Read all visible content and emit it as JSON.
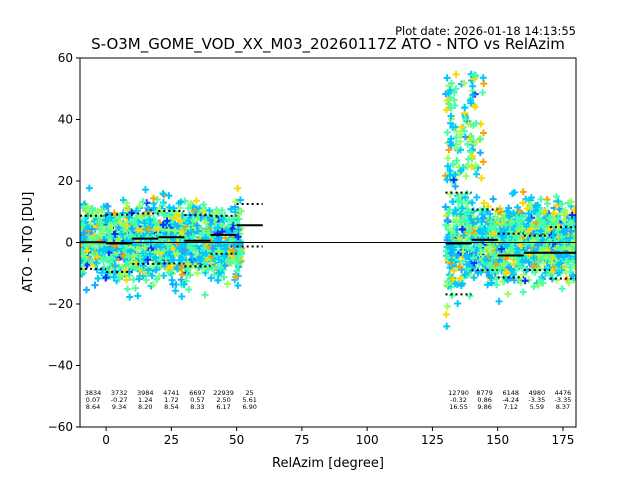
{
  "chart_data": {
    "type": "scatter",
    "title": "S-O3M_GOME_VOD_XX_M03_20260117Z ATO - NTO vs RelAzim",
    "plot_date": "Plot date: 2026-01-18 14:13:55",
    "xlabel": "RelAzim [degree]",
    "ylabel": "ATO - NTO [DU]",
    "xlim": [
      -10,
      180
    ],
    "ylim": [
      -60,
      60
    ],
    "xticks": [
      0,
      25,
      50,
      75,
      100,
      125,
      150,
      175
    ],
    "yticks": [
      -60,
      -40,
      -20,
      0,
      20,
      40,
      60
    ],
    "grid": false,
    "marker": "+",
    "point_colors": [
      "#00c8ff",
      "#48ffa8",
      "#98ff60",
      "#ffd800",
      "#ffa000",
      "#0030ff",
      "#18a8ff"
    ],
    "zero_line": 0,
    "point_clusters": [
      {
        "x_range": [
          -10,
          52
        ],
        "y_center": 0,
        "y_spread": 24
      },
      {
        "x_range": [
          130,
          180
        ],
        "y_center": 0,
        "y_spread": 24
      }
    ],
    "bins": [
      {
        "x_start": -10,
        "x_end": 0,
        "count": "3834",
        "mean": "0.07",
        "std": "8.64",
        "mean_val": 0.07,
        "std_val": 8.64
      },
      {
        "x_start": 0,
        "x_end": 10,
        "count": "3732",
        "mean": "-0.27",
        "std": "9.34",
        "mean_val": -0.27,
        "std_val": 9.34
      },
      {
        "x_start": 10,
        "x_end": 20,
        "count": "3984",
        "mean": "1.24",
        "std": "8.20",
        "mean_val": 1.24,
        "std_val": 8.2
      },
      {
        "x_start": 20,
        "x_end": 30,
        "count": "4741",
        "mean": "1.72",
        "std": "8.54",
        "mean_val": 1.72,
        "std_val": 8.54
      },
      {
        "x_start": 30,
        "x_end": 40,
        "count": "6697",
        "mean": "0.57",
        "std": "8.33",
        "mean_val": 0.57,
        "std_val": 8.33
      },
      {
        "x_start": 40,
        "x_end": 50,
        "count": "22939",
        "mean": "2.50",
        "std": "6.17",
        "mean_val": 2.5,
        "std_val": 6.17
      },
      {
        "x_start": 50,
        "x_end": 60,
        "count": "25",
        "mean": "5.61",
        "std": "6.90",
        "mean_val": 5.61,
        "std_val": 6.9
      },
      {
        "x_start": 130,
        "x_end": 140,
        "count": "12790",
        "mean": "-0.32",
        "std": "16.55",
        "mean_val": -0.32,
        "std_val": 16.55
      },
      {
        "x_start": 140,
        "x_end": 150,
        "count": "8779",
        "mean": "0.86",
        "std": "9.86",
        "mean_val": 0.86,
        "std_val": 9.86
      },
      {
        "x_start": 150,
        "x_end": 160,
        "count": "6148",
        "mean": "-4.24",
        "std": "7.12",
        "mean_val": -4.24,
        "std_val": 7.12
      },
      {
        "x_start": 160,
        "x_end": 170,
        "count": "4980",
        "mean": "-3.35",
        "std": "5.59",
        "mean_val": -3.35,
        "std_val": 5.59
      },
      {
        "x_start": 170,
        "x_end": 180,
        "count": "4476",
        "mean": "-3.35",
        "std": "8.37",
        "mean_val": -3.35,
        "std_val": 8.37
      }
    ]
  }
}
